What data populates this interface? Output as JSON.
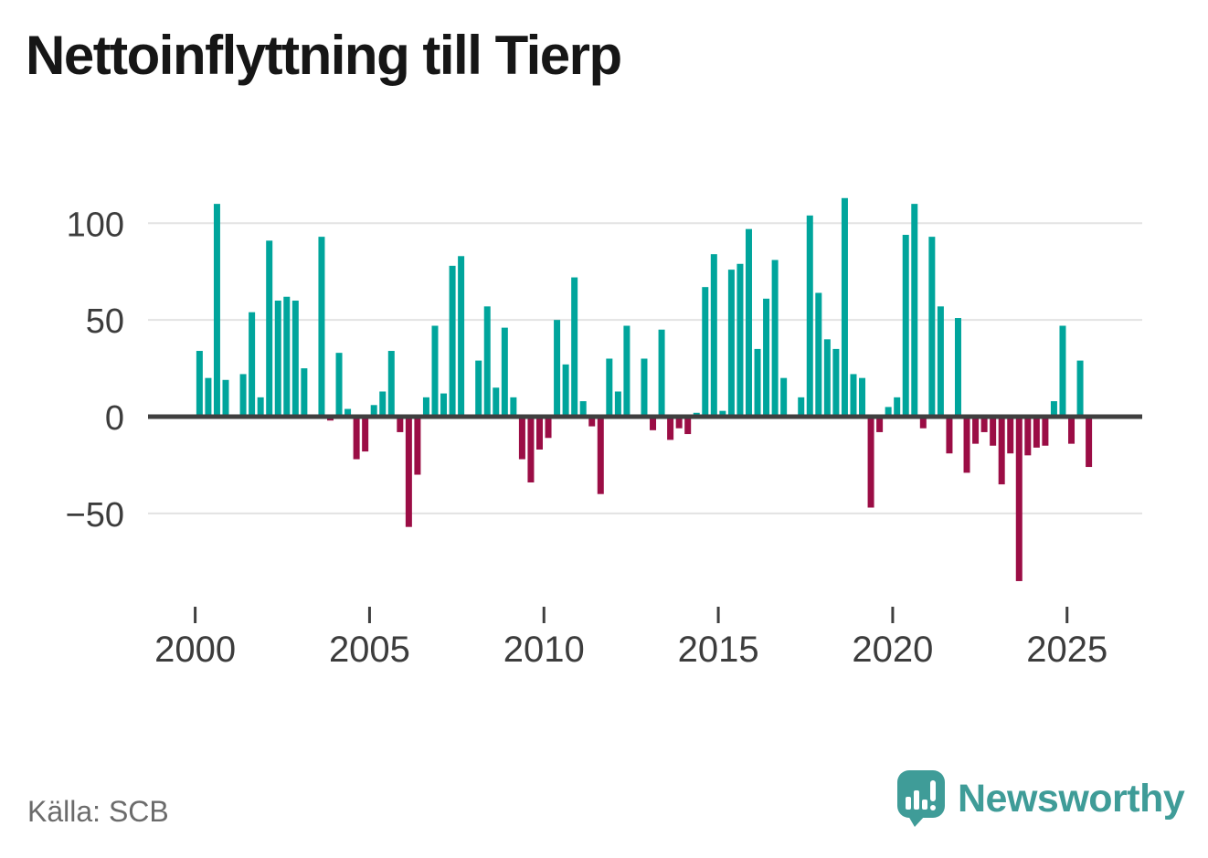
{
  "header": {
    "title": "Nettoinflyttning till Tierp"
  },
  "footer": {
    "source_label": "Källa: SCB",
    "brand_name": "Newsworthy"
  },
  "chart_data": {
    "type": "bar",
    "title": "Nettoinflyttning till Tierp",
    "frequency": "quarterly",
    "start_year": 2000,
    "start_quarter": 1,
    "values": [
      34,
      20,
      110,
      19,
      0,
      22,
      54,
      10,
      91,
      60,
      62,
      60,
      25,
      0,
      93,
      -2,
      33,
      4,
      -22,
      -18,
      6,
      13,
      34,
      -8,
      -57,
      -30,
      10,
      47,
      12,
      78,
      83,
      1,
      29,
      57,
      15,
      46,
      10,
      -22,
      -34,
      -17,
      -11,
      50,
      27,
      72,
      8,
      -5,
      -40,
      30,
      13,
      47,
      0,
      30,
      -7,
      45,
      -12,
      -6,
      -9,
      2,
      67,
      84,
      3,
      76,
      79,
      97,
      35,
      61,
      81,
      20,
      0,
      10,
      104,
      64,
      40,
      35,
      113,
      22,
      20,
      -47,
      -8,
      5,
      10,
      94,
      110,
      -6,
      93,
      57,
      -19,
      51,
      -29,
      -14,
      -8,
      -15,
      -35,
      -19,
      -85,
      -20,
      -16,
      -15,
      8,
      47,
      -14,
      29,
      -26
    ],
    "y_ticks": [
      100,
      50,
      0,
      -50
    ],
    "x_tick_years": [
      2000,
      2005,
      2010,
      2015,
      2020,
      2025
    ],
    "ylim": [
      -90,
      120
    ],
    "grid": true,
    "legend": "none",
    "colors": {
      "positive": "#00a59c",
      "negative": "#9b0d45",
      "axis": "#3f3f3f",
      "gridline": "#e3e3e3",
      "tick_label": "#3c3c3c"
    }
  }
}
